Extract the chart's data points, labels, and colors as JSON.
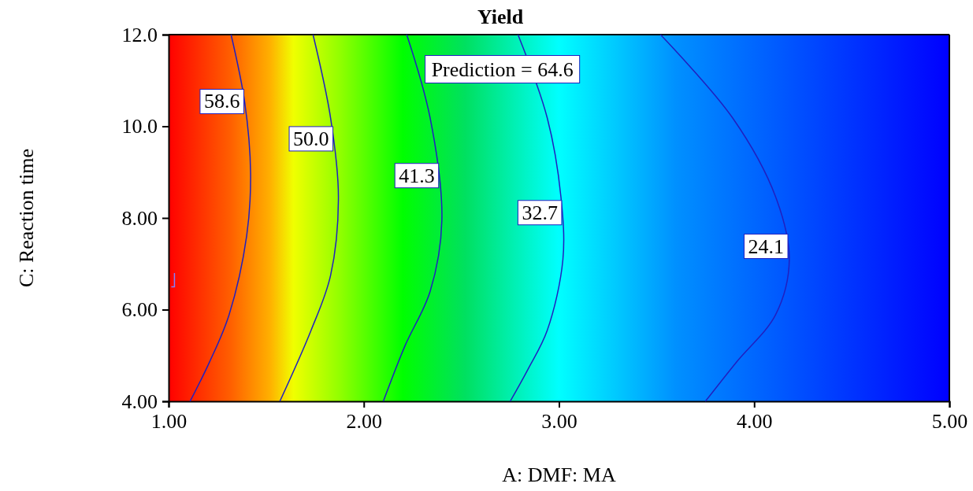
{
  "chart_data": {
    "type": "line",
    "title": "Yield",
    "xlabel": "A: DMF: MA",
    "ylabel": "C: Reaction time",
    "xlim": [
      1,
      5
    ],
    "ylim": [
      4,
      12
    ],
    "xticks": [
      {
        "value": 1,
        "label": "1.00"
      },
      {
        "value": 2,
        "label": "2.00"
      },
      {
        "value": 3,
        "label": "3.00"
      },
      {
        "value": 4,
        "label": "4.00"
      },
      {
        "value": 5,
        "label": "5.00"
      }
    ],
    "yticks": [
      {
        "value": 4,
        "label": "4.00"
      },
      {
        "value": 6,
        "label": "6.00"
      },
      {
        "value": 8,
        "label": "8.00"
      },
      {
        "value": 10,
        "label": "10.0"
      },
      {
        "value": 12,
        "label": "12.0"
      }
    ],
    "grid": false,
    "marker": "none",
    "line_style": "solid",
    "annotations": [
      "Prediction = 64.6"
    ],
    "series": [
      {
        "name": "58.6",
        "color": "#2020c0",
        "x": [
          1.32,
          1.39,
          1.42,
          1.4,
          1.31,
          1.21,
          1.11
        ],
        "values": [
          12,
          10.52,
          8.98,
          7.61,
          5.89,
          4.86,
          4
        ]
      },
      {
        "name": "50.0",
        "color": "#2020c0",
        "x": [
          1.74,
          1.83,
          1.87,
          1.83,
          1.73,
          1.57
        ],
        "values": [
          12,
          10.18,
          8.46,
          6.75,
          5.55,
          4
        ]
      },
      {
        "name": "41.3",
        "color": "#2020c0",
        "x": [
          2.22,
          2.34,
          2.4,
          2.34,
          2.21,
          2.1
        ],
        "values": [
          12,
          10.18,
          7.95,
          6.4,
          5.2,
          4
        ]
      },
      {
        "name": "32.7",
        "color": "#2020c0",
        "x": [
          2.79,
          2.94,
          3.01,
          3.02,
          2.94,
          2.84,
          2.75
        ],
        "values": [
          12,
          10.18,
          8.46,
          7.09,
          5.55,
          4.69,
          4
        ]
      },
      {
        "name": "24.1",
        "color": "#2020c0",
        "x": [
          3.52,
          3.89,
          4.11,
          4.18,
          4.11,
          3.91,
          3.75
        ],
        "values": [
          12,
          10.18,
          8.46,
          7.09,
          5.89,
          4.86,
          4
        ]
      }
    ]
  }
}
